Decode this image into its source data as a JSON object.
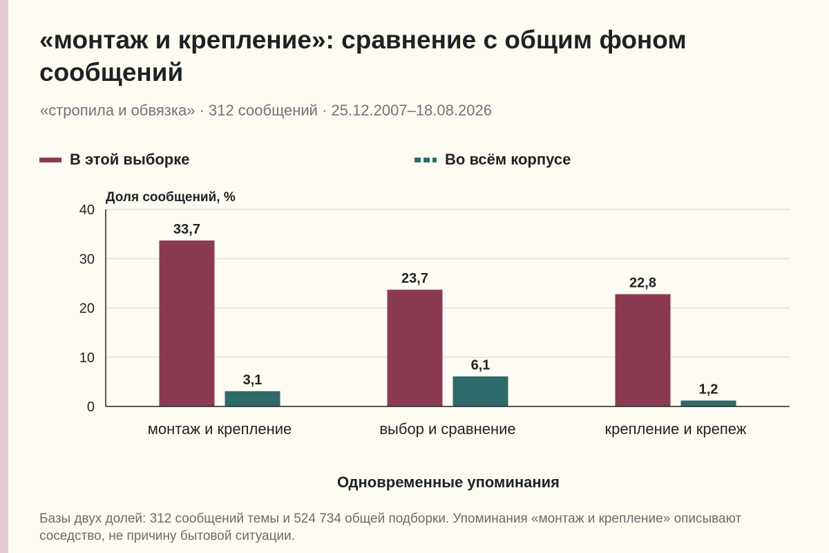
{
  "header": {
    "title": "«монтаж и крепление»: сравнение с общим фоном сообщений",
    "subtitle": "«стропила и обвязка» · 312 сообщений · 25.12.2007–18.08.2026"
  },
  "legend": {
    "sample": "В этой выборке",
    "corpus": "Во всём корпусе"
  },
  "footnote": "Базы двух долей: 312 сообщений темы и 524 734 общей подборки. Упоминания «монтаж и крепление» описывают соседство, не причину бытовой ситуации.",
  "colors": {
    "sample": "#8b3a52",
    "corpus": "#2f6b6b",
    "grid": "#d9d6cf",
    "axis": "#1f2225"
  },
  "chart_data": {
    "type": "bar",
    "title": "«монтаж и крепление»: сравнение с общим фоном сообщений",
    "ylabel": "Доля сообщений, %",
    "xlabel": "Одновременные упоминания",
    "categories": [
      "монтаж и крепление",
      "выбор и сравнение",
      "крепление и крепеж"
    ],
    "series": [
      {
        "name": "В этой выборке",
        "values": [
          33.7,
          23.7,
          22.8
        ],
        "labels": [
          "33,7",
          "23,7",
          "22,8"
        ]
      },
      {
        "name": "Во всём корпусе",
        "values": [
          3.1,
          6.1,
          1.2
        ],
        "labels": [
          "3,1",
          "6,1",
          "1,2"
        ]
      }
    ],
    "ylim": [
      0,
      40
    ],
    "yticks": [
      0,
      10,
      20,
      30,
      40
    ],
    "grid": true,
    "legend_position": "top"
  }
}
